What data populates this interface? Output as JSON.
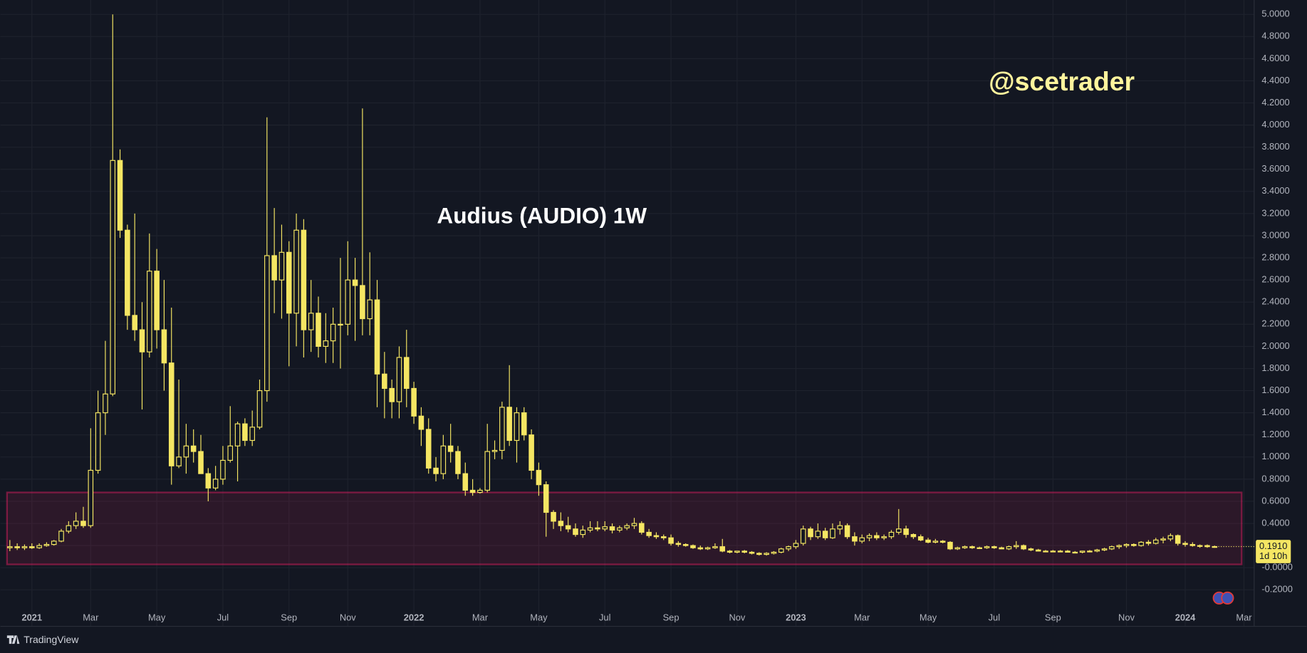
{
  "chart_data": {
    "type": "candlestick",
    "title": "Audius (AUDIO) 1W",
    "watermark": "@scetrader",
    "brand": "TradingView",
    "countdown": "1d 10h",
    "price_label": {
      "value": 0.191,
      "label": "0.1910"
    },
    "up_color": "#131722",
    "down_color": "#f5e663",
    "wick_color": "#f5e663",
    "zone": {
      "from": 0.03,
      "to": 0.68,
      "color": "#e91e63"
    },
    "grid": true,
    "ylim": [
      -0.53,
      5.13
    ],
    "yticks": [
      {
        "value": -0.2,
        "label": "-0.2000"
      },
      {
        "value": 0,
        "label": "-0.0000"
      },
      {
        "value": 0.2,
        "label": "0.2000"
      },
      {
        "value": 0.4,
        "label": "0.4000"
      },
      {
        "value": 0.6,
        "label": "0.6000"
      },
      {
        "value": 0.8,
        "label": "0.8000"
      },
      {
        "value": 1.0,
        "label": "1.0000"
      },
      {
        "value": 1.2,
        "label": "1.2000"
      },
      {
        "value": 1.4,
        "label": "1.4000"
      },
      {
        "value": 1.6,
        "label": "1.6000"
      },
      {
        "value": 1.8,
        "label": "1.8000"
      },
      {
        "value": 2.0,
        "label": "2.0000"
      },
      {
        "value": 2.2,
        "label": "2.2000"
      },
      {
        "value": 2.4,
        "label": "2.4000"
      },
      {
        "value": 2.6,
        "label": "2.6000"
      },
      {
        "value": 2.8,
        "label": "2.8000"
      },
      {
        "value": 3.0,
        "label": "3.0000"
      },
      {
        "value": 3.2,
        "label": "3.2000"
      },
      {
        "value": 3.4,
        "label": "3.4000"
      },
      {
        "value": 3.6,
        "label": "3.6000"
      },
      {
        "value": 3.8,
        "label": "3.8000"
      },
      {
        "value": 4.0,
        "label": "4.0000"
      },
      {
        "value": 4.2,
        "label": "4.2000"
      },
      {
        "value": 4.4,
        "label": "4.4000"
      },
      {
        "value": 4.6,
        "label": "4.6000"
      },
      {
        "value": 4.8,
        "label": "4.8000"
      },
      {
        "value": 5.0,
        "label": "5.0000"
      }
    ],
    "categories": [
      null,
      null,
      null,
      "2021",
      null,
      null,
      null,
      null,
      null,
      null,
      null,
      "Mar",
      null,
      null,
      null,
      null,
      null,
      null,
      null,
      null,
      "May",
      null,
      null,
      null,
      null,
      null,
      null,
      null,
      null,
      "Jul",
      null,
      null,
      null,
      null,
      null,
      null,
      null,
      null,
      "Sep",
      null,
      null,
      null,
      null,
      null,
      null,
      null,
      "Nov",
      null,
      null,
      null,
      null,
      null,
      null,
      null,
      null,
      "2022",
      null,
      null,
      null,
      null,
      null,
      null,
      null,
      null,
      "Mar",
      null,
      null,
      null,
      null,
      null,
      null,
      null,
      "May",
      null,
      null,
      null,
      null,
      null,
      null,
      null,
      null,
      "Jul",
      null,
      null,
      null,
      null,
      null,
      null,
      null,
      null,
      "Sep",
      null,
      null,
      null,
      null,
      null,
      null,
      null,
      null,
      "Nov",
      null,
      null,
      null,
      null,
      null,
      null,
      null,
      "2023",
      null,
      null,
      null,
      null,
      null,
      null,
      null,
      null,
      "Mar",
      null,
      null,
      null,
      null,
      null,
      null,
      null,
      null,
      "May",
      null,
      null,
      null,
      null,
      null,
      null,
      null,
      null,
      "Jul",
      null,
      null,
      null,
      null,
      null,
      null,
      null,
      "Sep",
      null,
      null,
      null,
      null,
      null,
      null,
      null,
      null,
      null,
      "Nov",
      null,
      null,
      null,
      null,
      null,
      null,
      null,
      "2024",
      null,
      null,
      null,
      null,
      null,
      null,
      null,
      "Mar",
      null
    ],
    "open": [
      0.18,
      0.19,
      0.18,
      0.19,
      0.18,
      0.2,
      0.21,
      0.24,
      0.33,
      0.38,
      0.42,
      0.38,
      0.88,
      1.4,
      1.57,
      3.68,
      3.05,
      2.28,
      2.15,
      1.95,
      2.68,
      2.15,
      1.85,
      0.92,
      1.0,
      1.1,
      1.05,
      0.85,
      0.72,
      0.8,
      0.97,
      1.1,
      1.3,
      1.15,
      1.27,
      1.6,
      2.82,
      2.6,
      2.85,
      2.3,
      3.05,
      2.15,
      2.3,
      2.0,
      2.05,
      2.2,
      2.2,
      2.6,
      2.55,
      2.25,
      2.42,
      1.75,
      1.62,
      1.5,
      1.9,
      1.62,
      1.37,
      1.25,
      0.9,
      0.85,
      1.1,
      1.05,
      0.85,
      0.7,
      0.68,
      0.7,
      1.05,
      1.06,
      1.45,
      1.15,
      1.4,
      1.2,
      0.88,
      0.75,
      0.5,
      0.42,
      0.38,
      0.35,
      0.3,
      0.34,
      0.36,
      0.35,
      0.37,
      0.34,
      0.36,
      0.38,
      0.4,
      0.32,
      0.29,
      0.28,
      0.27,
      0.22,
      0.21,
      0.2,
      0.18,
      0.17,
      0.18,
      0.19,
      0.15,
      0.14,
      0.15,
      0.14,
      0.13,
      0.12,
      0.13,
      0.14,
      0.17,
      0.19,
      0.22,
      0.35,
      0.28,
      0.33,
      0.27,
      0.35,
      0.38,
      0.28,
      0.24,
      0.27,
      0.29,
      0.27,
      0.28,
      0.32,
      0.35,
      0.3,
      0.28,
      0.25,
      0.23,
      0.24,
      0.23,
      0.17,
      0.18,
      0.19,
      0.18,
      0.18,
      0.19,
      0.18,
      0.17,
      0.19,
      0.2,
      0.17,
      0.16,
      0.15,
      0.15,
      0.15,
      0.15,
      0.14,
      0.14,
      0.15,
      0.15,
      0.16,
      0.17,
      0.19,
      0.2,
      0.21,
      0.2,
      0.23,
      0.22,
      0.25,
      0.26,
      0.29,
      0.22,
      0.21,
      0.2,
      0.2,
      0.19,
      null,
      null,
      null,
      null,
      null
    ],
    "high": [
      0.25,
      0.22,
      0.21,
      0.22,
      0.22,
      0.23,
      0.25,
      0.35,
      0.42,
      0.5,
      0.55,
      1.26,
      1.6,
      2.05,
      5.0,
      3.78,
      3.1,
      3.2,
      2.4,
      3.02,
      2.88,
      2.6,
      2.35,
      1.7,
      1.3,
      1.25,
      1.2,
      0.9,
      0.92,
      1.1,
      1.46,
      1.32,
      1.35,
      1.42,
      1.7,
      4.07,
      3.25,
      3.1,
      2.95,
      3.2,
      3.15,
      2.6,
      2.45,
      2.3,
      2.35,
      2.8,
      2.95,
      2.8,
      4.15,
      2.85,
      2.6,
      1.95,
      1.7,
      2.0,
      2.15,
      1.68,
      1.45,
      1.35,
      1.0,
      1.2,
      1.3,
      1.1,
      0.95,
      0.8,
      0.72,
      1.3,
      1.15,
      1.5,
      1.83,
      1.45,
      1.45,
      1.25,
      0.95,
      0.78,
      0.52,
      0.5,
      0.46,
      0.4,
      0.38,
      0.42,
      0.42,
      0.42,
      0.4,
      0.38,
      0.4,
      0.45,
      0.42,
      0.35,
      0.32,
      0.3,
      0.3,
      0.24,
      0.22,
      0.21,
      0.2,
      0.19,
      0.22,
      0.26,
      0.16,
      0.15,
      0.16,
      0.15,
      0.14,
      0.14,
      0.15,
      0.18,
      0.2,
      0.25,
      0.38,
      0.37,
      0.4,
      0.36,
      0.4,
      0.42,
      0.4,
      0.32,
      0.3,
      0.31,
      0.32,
      0.3,
      0.34,
      0.53,
      0.38,
      0.31,
      0.3,
      0.27,
      0.26,
      0.25,
      0.24,
      0.19,
      0.2,
      0.2,
      0.19,
      0.2,
      0.2,
      0.19,
      0.2,
      0.24,
      0.21,
      0.18,
      0.17,
      0.16,
      0.16,
      0.16,
      0.16,
      0.15,
      0.15,
      0.16,
      0.17,
      0.18,
      0.2,
      0.21,
      0.22,
      0.22,
      0.24,
      0.25,
      0.27,
      0.28,
      0.31,
      0.3,
      0.24,
      0.23,
      0.21,
      0.21,
      0.2,
      null,
      null,
      null,
      null,
      null
    ],
    "low": [
      0.15,
      0.16,
      0.16,
      0.17,
      0.17,
      0.19,
      0.2,
      0.23,
      0.31,
      0.35,
      0.36,
      0.36,
      0.85,
      1.2,
      1.55,
      2.98,
      2.15,
      2.05,
      1.43,
      1.9,
      1.98,
      1.6,
      0.75,
      0.9,
      0.85,
      0.95,
      0.85,
      0.6,
      0.7,
      0.75,
      0.95,
      0.78,
      1.1,
      1.1,
      1.25,
      1.5,
      2.3,
      2.25,
      1.82,
      2.0,
      1.9,
      1.95,
      1.9,
      1.85,
      1.85,
      1.8,
      2.1,
      2.05,
      2.1,
      2.1,
      1.45,
      1.35,
      1.35,
      1.35,
      1.45,
      1.3,
      1.1,
      0.85,
      0.78,
      0.8,
      0.95,
      0.8,
      0.65,
      0.65,
      0.67,
      0.68,
      0.98,
      0.98,
      1.1,
      0.95,
      1.15,
      0.8,
      0.65,
      0.28,
      0.35,
      0.33,
      0.32,
      0.28,
      0.27,
      0.32,
      0.33,
      0.33,
      0.31,
      0.32,
      0.34,
      0.35,
      0.3,
      0.27,
      0.26,
      0.25,
      0.2,
      0.19,
      0.19,
      0.17,
      0.16,
      0.16,
      0.17,
      0.14,
      0.13,
      0.13,
      0.13,
      0.12,
      0.11,
      0.11,
      0.12,
      0.13,
      0.15,
      0.17,
      0.2,
      0.25,
      0.26,
      0.25,
      0.26,
      0.3,
      0.26,
      0.2,
      0.22,
      0.24,
      0.25,
      0.25,
      0.26,
      0.3,
      0.27,
      0.26,
      0.24,
      0.22,
      0.22,
      0.22,
      0.16,
      0.16,
      0.17,
      0.17,
      0.17,
      0.17,
      0.17,
      0.17,
      0.16,
      0.17,
      0.16,
      0.15,
      0.15,
      0.14,
      0.14,
      0.14,
      0.14,
      0.13,
      0.13,
      0.14,
      0.14,
      0.15,
      0.16,
      0.17,
      0.18,
      0.19,
      0.19,
      0.2,
      0.21,
      0.22,
      0.24,
      0.2,
      0.19,
      0.19,
      0.18,
      0.18,
      0.18,
      null,
      null,
      null,
      null,
      null
    ],
    "close": [
      0.19,
      0.18,
      0.19,
      0.18,
      0.2,
      0.21,
      0.24,
      0.33,
      0.38,
      0.42,
      0.38,
      0.88,
      1.4,
      1.57,
      3.68,
      3.05,
      2.28,
      2.15,
      1.95,
      2.68,
      2.15,
      1.85,
      0.92,
      1.0,
      1.1,
      1.05,
      0.85,
      0.72,
      0.8,
      0.97,
      1.1,
      1.3,
      1.15,
      1.27,
      1.6,
      2.82,
      2.6,
      2.85,
      2.3,
      3.05,
      2.15,
      2.3,
      2.0,
      2.05,
      2.2,
      2.2,
      2.6,
      2.55,
      2.25,
      2.42,
      1.75,
      1.62,
      1.5,
      1.9,
      1.62,
      1.37,
      1.25,
      0.9,
      0.85,
      1.1,
      1.05,
      0.85,
      0.7,
      0.68,
      0.7,
      1.05,
      1.06,
      1.45,
      1.15,
      1.4,
      1.2,
      0.88,
      0.75,
      0.5,
      0.42,
      0.38,
      0.35,
      0.3,
      0.34,
      0.36,
      0.35,
      0.37,
      0.34,
      0.36,
      0.38,
      0.4,
      0.32,
      0.29,
      0.28,
      0.27,
      0.22,
      0.21,
      0.2,
      0.18,
      0.17,
      0.18,
      0.19,
      0.15,
      0.14,
      0.15,
      0.14,
      0.13,
      0.12,
      0.13,
      0.14,
      0.17,
      0.19,
      0.22,
      0.35,
      0.28,
      0.33,
      0.27,
      0.35,
      0.38,
      0.28,
      0.24,
      0.27,
      0.29,
      0.27,
      0.28,
      0.32,
      0.35,
      0.3,
      0.28,
      0.25,
      0.23,
      0.24,
      0.23,
      0.17,
      0.18,
      0.19,
      0.18,
      0.18,
      0.19,
      0.18,
      0.17,
      0.19,
      0.2,
      0.17,
      0.16,
      0.15,
      0.15,
      0.15,
      0.15,
      0.14,
      0.14,
      0.15,
      0.15,
      0.16,
      0.17,
      0.19,
      0.2,
      0.21,
      0.2,
      0.23,
      0.22,
      0.25,
      0.26,
      0.29,
      0.22,
      0.21,
      0.2,
      0.2,
      0.19,
      0.191,
      null,
      null,
      null,
      null,
      null
    ]
  }
}
